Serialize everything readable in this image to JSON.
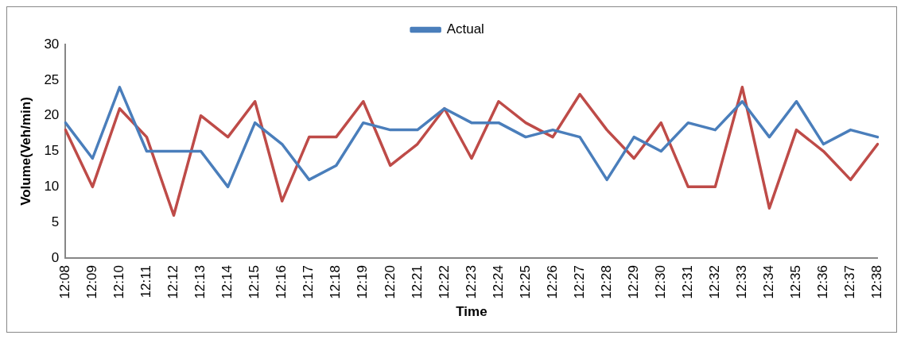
{
  "chart_data": {
    "type": "line",
    "xlabel": "Time",
    "ylabel": "Volume(Veh/min)",
    "categories": [
      "12:08",
      "12:09",
      "12:10",
      "12:11",
      "12:12",
      "12:13",
      "12:14",
      "12:15",
      "12:16",
      "12:17",
      "12:18",
      "12:19",
      "12:20",
      "12:21",
      "12:22",
      "12:23",
      "12:24",
      "12:25",
      "12:26",
      "12:27",
      "12:28",
      "12:29",
      "12:30",
      "12:31",
      "12:32",
      "12:33",
      "12:34",
      "12:35",
      "12:36",
      "12:37",
      "12:38"
    ],
    "series": [
      {
        "name": "Actual",
        "color": "#4a7ebb",
        "values": [
          19,
          14,
          24,
          15,
          15,
          15,
          10,
          19,
          16,
          11,
          13,
          19,
          18,
          18,
          21,
          19,
          19,
          17,
          18,
          17,
          11,
          17,
          15,
          19,
          18,
          22,
          17,
          22,
          16,
          18,
          17
        ]
      },
      {
        "color": "#be4b48",
        "values": [
          18,
          10,
          21,
          17,
          6,
          20,
          17,
          22,
          8,
          17,
          17,
          22,
          13,
          16,
          21,
          14,
          22,
          19,
          17,
          23,
          18,
          14,
          19,
          10,
          10,
          24,
          7,
          18,
          15,
          11,
          16
        ]
      }
    ],
    "ylim": [
      0,
      30
    ],
    "yticks": [
      0,
      5,
      10,
      15,
      20,
      25,
      30
    ],
    "grid": false,
    "legend": "top",
    "marker": "none",
    "line_style": "solid"
  }
}
